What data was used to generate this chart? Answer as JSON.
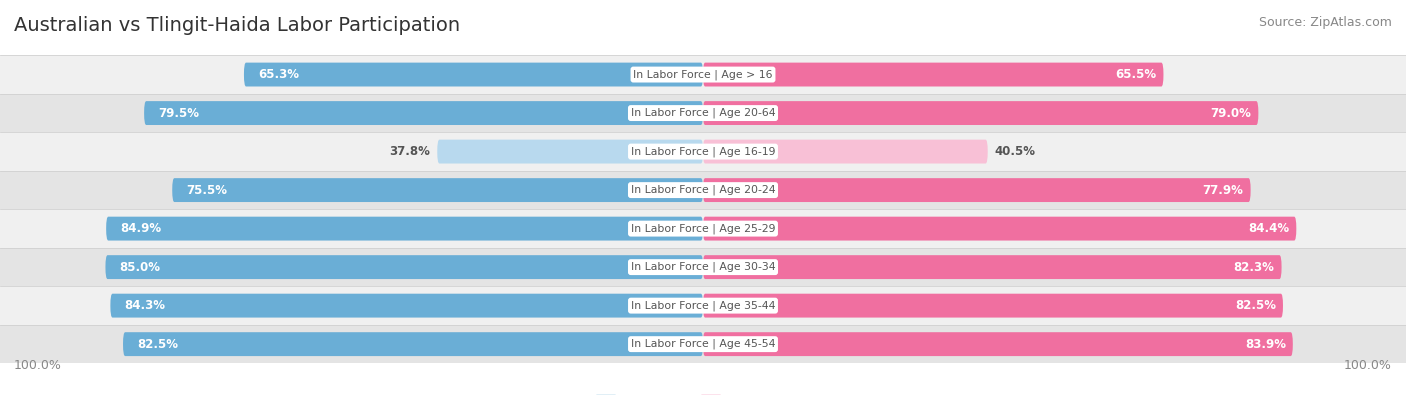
{
  "title": "Australian vs Tlingit-Haida Labor Participation",
  "source": "Source: ZipAtlas.com",
  "categories": [
    "In Labor Force | Age > 16",
    "In Labor Force | Age 20-64",
    "In Labor Force | Age 16-19",
    "In Labor Force | Age 20-24",
    "In Labor Force | Age 25-29",
    "In Labor Force | Age 30-34",
    "In Labor Force | Age 35-44",
    "In Labor Force | Age 45-54"
  ],
  "australian_values": [
    65.3,
    79.5,
    37.8,
    75.5,
    84.9,
    85.0,
    84.3,
    82.5
  ],
  "tlingit_values": [
    65.5,
    79.0,
    40.5,
    77.9,
    84.4,
    82.3,
    82.5,
    83.9
  ],
  "australian_color": "#6aaed6",
  "australian_color_light": "#b8d9ee",
  "tlingit_color": "#f06fa0",
  "tlingit_color_light": "#f8c0d6",
  "row_bg_even": "#f0f0f0",
  "row_bg_odd": "#e4e4e4",
  "label_color_dark": "#555555",
  "label_color_white": "#ffffff",
  "max_value": 100.0,
  "figsize": [
    14.06,
    3.95
  ],
  "dpi": 100,
  "background_color": "#ffffff",
  "title_fontsize": 14,
  "source_fontsize": 9,
  "bar_label_fontsize": 8.5,
  "category_label_fontsize": 7.8,
  "legend_fontsize": 9
}
